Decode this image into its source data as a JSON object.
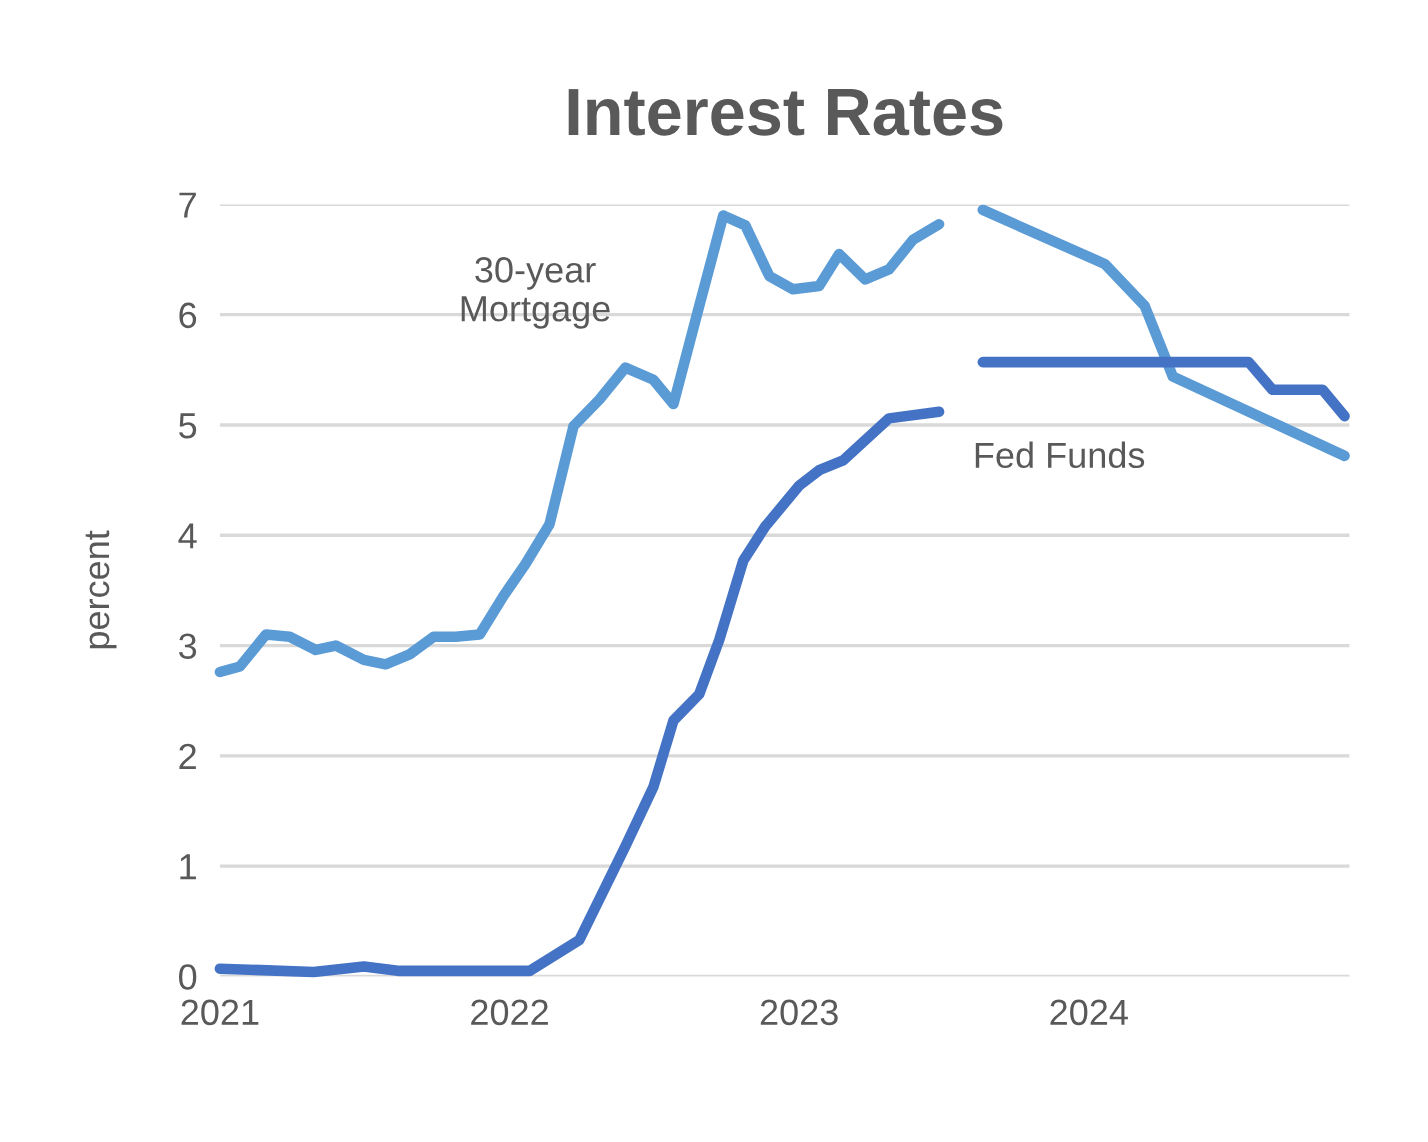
{
  "chart_data": {
    "type": "line",
    "title": "Interest Rates",
    "ylabel": "percent",
    "series": [
      {
        "name": "30-year\nMortgage",
        "color": "#5b9bd5",
        "x": [
          2021.0,
          2021.069,
          2021.159,
          2021.241,
          2021.331,
          2021.4,
          2021.497,
          2021.572,
          2021.655,
          2021.738,
          2021.814,
          2021.897,
          2021.979,
          2022.055,
          2022.138,
          2022.221,
          2022.31,
          2022.4,
          2022.497,
          2022.566,
          2022.655,
          2022.738,
          2022.814,
          2022.897,
          2022.979,
          2023.069,
          2023.138,
          2023.228,
          2023.31,
          2023.393,
          2023.483,
          2023.56,
          2023.634,
          2024.055,
          2024.193,
          2024.29,
          2024.883
        ],
        "values": [
          2.76,
          2.81,
          3.1,
          3.08,
          2.96,
          3.0,
          2.87,
          2.83,
          2.92,
          3.08,
          3.08,
          3.1,
          3.45,
          3.74,
          4.1,
          4.99,
          5.23,
          5.52,
          5.41,
          5.19,
          6.08,
          6.9,
          6.81,
          6.35,
          6.23,
          6.26,
          6.55,
          6.32,
          6.41,
          6.68,
          6.82,
          null,
          6.95,
          6.46,
          6.08,
          5.44,
          4.72
        ]
      },
      {
        "name": "Fed Funds",
        "color": "#4472c4",
        "x": [
          2021.0,
          2021.324,
          2021.497,
          2021.621,
          2022.069,
          2022.241,
          2022.4,
          2022.497,
          2022.566,
          2022.655,
          2022.724,
          2022.807,
          2022.883,
          2023.0,
          2023.069,
          2023.152,
          2023.31,
          2023.483,
          2023.56,
          2023.634,
          2024.552,
          2024.634,
          2024.807,
          2024.883
        ],
        "values": [
          0.07,
          0.04,
          0.09,
          0.05,
          0.05,
          0.33,
          1.18,
          1.72,
          2.32,
          2.56,
          3.05,
          3.77,
          4.08,
          4.45,
          4.59,
          4.68,
          5.06,
          5.12,
          null,
          5.57,
          5.57,
          5.32,
          5.32,
          5.08
        ]
      }
    ],
    "xlim": [
      2021,
      2024.9
    ],
    "xticks": [
      2021,
      2022,
      2023,
      2024
    ],
    "ylim": [
      0,
      7
    ],
    "yticks": [
      0,
      1,
      2,
      3,
      4,
      5,
      6,
      7
    ],
    "grid": "y",
    "legend": false
  }
}
